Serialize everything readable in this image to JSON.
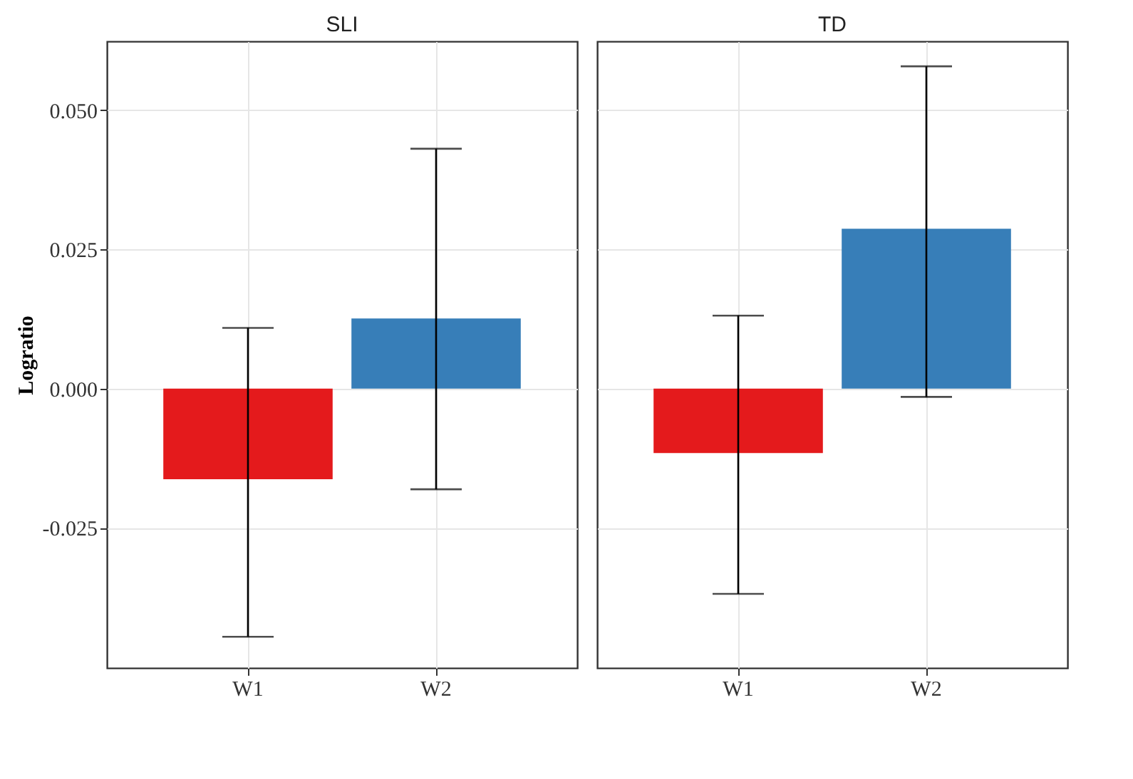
{
  "chart_data": [
    {
      "type": "bar",
      "title": "SLI",
      "ylabel": "Logratio",
      "categories": [
        "W1",
        "W2"
      ],
      "values": [
        -0.0163,
        0.0126
      ],
      "colors": [
        "#e41a1c",
        "#377eb8"
      ],
      "errors": [
        [
          -0.0446,
          0.0109
        ],
        [
          -0.0181,
          0.0431
        ]
      ],
      "ylim": [
        -0.0502,
        0.0624
      ],
      "yticks": [
        {
          "value": -0.025,
          "label": "-0.025"
        },
        {
          "value": 0,
          "label": "0.000"
        },
        {
          "value": 0.025,
          "label": "0.025"
        },
        {
          "value": 0.05,
          "label": "0.050"
        }
      ],
      "grid": true
    },
    {
      "type": "bar",
      "title": "TD",
      "categories": [
        "W1",
        "W2"
      ],
      "values": [
        -0.0116,
        0.0287
      ],
      "colors": [
        "#e41a1c",
        "#377eb8"
      ],
      "errors": [
        [
          -0.0369,
          0.0131
        ],
        [
          -0.0015,
          0.0579
        ]
      ],
      "ylim": [
        -0.0502,
        0.0624
      ],
      "yticks": [
        -0.025,
        0,
        0.025,
        0.05
      ],
      "grid": true,
      "tick_labels": "x"
    }
  ]
}
